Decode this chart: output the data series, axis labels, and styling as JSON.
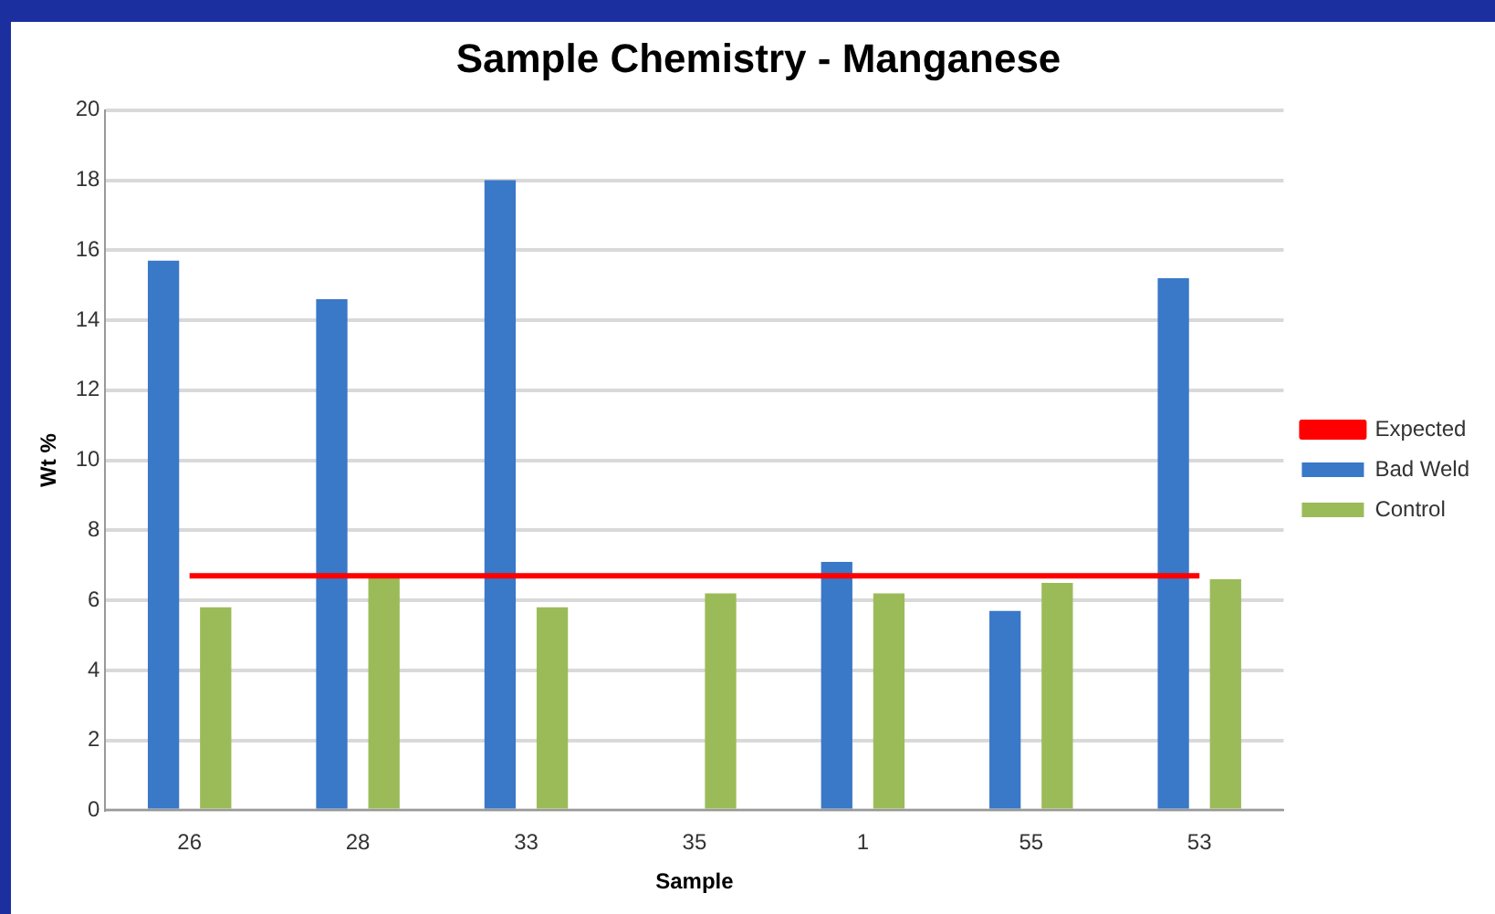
{
  "chart_data": {
    "type": "bar",
    "title": "Sample Chemistry - Manganese",
    "xlabel": "Sample",
    "ylabel": "Wt %",
    "categories": [
      "26",
      "28",
      "33",
      "35",
      "1",
      "55",
      "53"
    ],
    "series": [
      {
        "name": "Bad Weld",
        "color": "#3a78c8",
        "values": [
          15.7,
          14.6,
          18.0,
          null,
          7.1,
          5.7,
          15.2
        ]
      },
      {
        "name": "Control",
        "color": "#9bbb59",
        "values": [
          5.8,
          6.7,
          5.8,
          6.2,
          6.2,
          6.5,
          6.6
        ]
      },
      {
        "name": "Expected",
        "type": "line",
        "color": "#ff0000",
        "values": [
          6.7,
          6.7,
          6.7,
          6.7,
          6.7,
          6.7,
          6.7
        ]
      }
    ],
    "ylim": [
      0,
      20
    ],
    "yticks": [
      0,
      2,
      4,
      6,
      8,
      10,
      12,
      14,
      16,
      18,
      20
    ],
    "grid": "y",
    "legend": "right",
    "marker": "none"
  }
}
